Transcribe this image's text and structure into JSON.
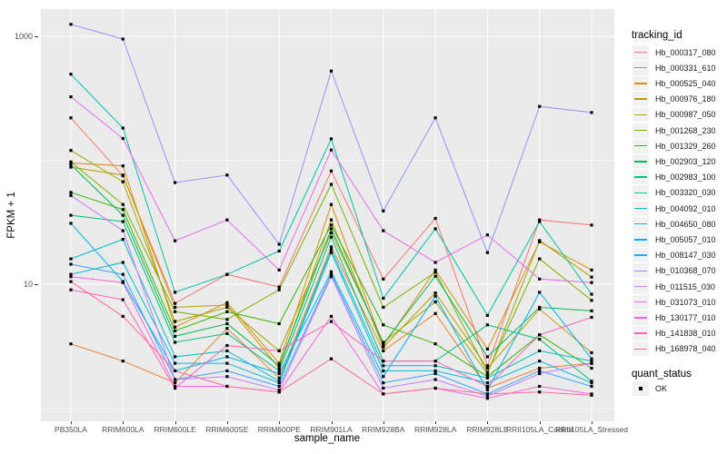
{
  "axes": {
    "y": {
      "title": "FPKM + 1",
      "ticks": [
        {
          "value": 1000,
          "label": "1000"
        },
        {
          "value": 10,
          "label": "10"
        }
      ]
    },
    "x": {
      "title": "sample_name"
    }
  },
  "legend": {
    "tracking_title": "tracking_id",
    "quant_title": "quant_status",
    "quant_items": [
      "OK"
    ]
  },
  "colors": {
    "panel_background": "#EBEBEB",
    "gridline": "#FFFFFF",
    "legend_key_background": "#F2F2F2",
    "axis_text": "#4D4D4D",
    "point": "#000000"
  },
  "chart_data": {
    "type": "line",
    "title": "",
    "xlabel": "sample_name",
    "ylabel": "FPKM + 1",
    "y_scale": "log10",
    "ylim": [
      0.85,
      1700
    ],
    "y_tick_values": [
      10,
      1000
    ],
    "y_major_gridlines": [
      10,
      1000
    ],
    "y_minor_gridlines": [
      1,
      100
    ],
    "grid": true,
    "legend_position": "right",
    "marker": {
      "shape": "square",
      "color": "#000000",
      "legend_label": "OK"
    },
    "categories": [
      "PB350LA",
      "RRIM600LA",
      "RRIM600LE",
      "RRIM600SE",
      "RRIM600PE",
      "RRIM901LA",
      "RRIM928BA",
      "RRIM928LA",
      "RRIM928LE",
      "RRII105LA_Control",
      "RRII105LA_Stressed"
    ],
    "series": [
      {
        "name": "Hb_000317_080",
        "color": "#F8766D",
        "values": [
          220,
          75,
          7,
          12,
          9.5,
          82,
          11,
          34,
          2.2,
          33,
          30
        ]
      },
      {
        "name": "Hb_000331_610",
        "color": "#EA8331",
        "values": [
          3.3,
          2.4,
          1.6,
          4.4,
          1.75,
          20,
          2.9,
          5.8,
          1.45,
          2.1,
          2.3
        ]
      },
      {
        "name": "Hb_000525_040",
        "color": "#D89000",
        "values": [
          95,
          90,
          4.5,
          7.1,
          2.3,
          44,
          3.2,
          13,
          3.0,
          22,
          13
        ]
      },
      {
        "name": "Hb_000976_180",
        "color": "#C09B00",
        "values": [
          88,
          76,
          6.5,
          6.8,
          2.1,
          33,
          3.1,
          8.5,
          2.1,
          6.3,
          2.8
        ]
      },
      {
        "name": "Hb_000987_050",
        "color": "#A3A500",
        "values": [
          120,
          67,
          5.0,
          6.5,
          2.9,
          26,
          3.4,
          7.2,
          1.9,
          22.5,
          11.4
        ]
      },
      {
        "name": "Hb_001268_230",
        "color": "#7CAE00",
        "values": [
          97,
          44,
          6.0,
          5.2,
          9.0,
          64,
          6.5,
          12.5,
          1.95,
          16,
          7.4
        ]
      },
      {
        "name": "Hb_001329_260",
        "color": "#39B600",
        "values": [
          55,
          40,
          4.2,
          6.0,
          4.8,
          30,
          4.7,
          3.3,
          1.8,
          3.9,
          2.1
        ]
      },
      {
        "name": "Hb_002903_120",
        "color": "#00BB4E",
        "values": [
          92,
          36,
          3.8,
          4.8,
          2.2,
          28,
          3.3,
          11.6,
          2.6,
          6.5,
          6.1
        ]
      },
      {
        "name": "Hb_002983_100",
        "color": "#00BF7D",
        "values": [
          36,
          32,
          3.4,
          4.0,
          2.0,
          24,
          2.4,
          2.4,
          4.7,
          3.6,
          1.65
        ]
      },
      {
        "name": "Hb_003320_030",
        "color": "#00C1A3",
        "values": [
          495,
          182,
          8.6,
          12,
          18.5,
          149,
          7.7,
          28,
          5.6,
          32,
          8.3
        ]
      },
      {
        "name": "Hb_004092_010",
        "color": "#00BFC4",
        "values": [
          16,
          23,
          2.6,
          2.9,
          1.65,
          19,
          2.2,
          2.2,
          1.75,
          2.9,
          2.4
        ]
      },
      {
        "name": "Hb_004650_080",
        "color": "#00BAE0",
        "values": [
          12,
          15,
          2.3,
          2.3,
          1.6,
          18,
          2.0,
          2.0,
          1.6,
          2.4,
          1.6
        ]
      },
      {
        "name": "Hb_005057_010",
        "color": "#00B0F6",
        "values": [
          31,
          10.5,
          2.0,
          2.6,
          1.9,
          12.6,
          1.8,
          8.0,
          1.4,
          8.6,
          2.5
        ]
      },
      {
        "name": "Hb_008147_030",
        "color": "#35A2FF",
        "values": [
          14.5,
          12,
          1.7,
          2.0,
          1.5,
          12,
          1.6,
          1.9,
          1.3,
          2.0,
          1.5
        ]
      },
      {
        "name": "Hb_010368_070",
        "color": "#9590FF",
        "values": [
          1250,
          950,
          66,
          76,
          21,
          525,
          39,
          220,
          18,
          272,
          243
        ]
      },
      {
        "name": "Hb_011515_030",
        "color": "#C77CFF",
        "values": [
          52,
          27,
          1.7,
          1.8,
          1.4,
          11.5,
          1.45,
          1.7,
          1.25,
          1.9,
          2.3
        ]
      },
      {
        "name": "Hb_031073_010",
        "color": "#E76BF3",
        "values": [
          325,
          150,
          22.4,
          33,
          13,
          121,
          27,
          15,
          25,
          11,
          10.3
        ]
      },
      {
        "name": "Hb_130177_010",
        "color": "#FA62DB",
        "values": [
          11.5,
          10.3,
          1.5,
          1.5,
          1.35,
          5.5,
          1.3,
          1.45,
          1.2,
          1.5,
          1.3
        ]
      },
      {
        "name": "Hb_141838_010",
        "color": "#FF62BC",
        "values": [
          9,
          7.5,
          1.45,
          3.2,
          2.9,
          5.0,
          2.4,
          2.4,
          1.5,
          3.9,
          5.4
        ]
      },
      {
        "name": "Hb_168978_040",
        "color": "#FF6A98",
        "values": [
          10.5,
          5.5,
          2.0,
          1.5,
          1.35,
          2.5,
          1.3,
          1.45,
          1.3,
          1.35,
          1.27
        ]
      }
    ]
  }
}
